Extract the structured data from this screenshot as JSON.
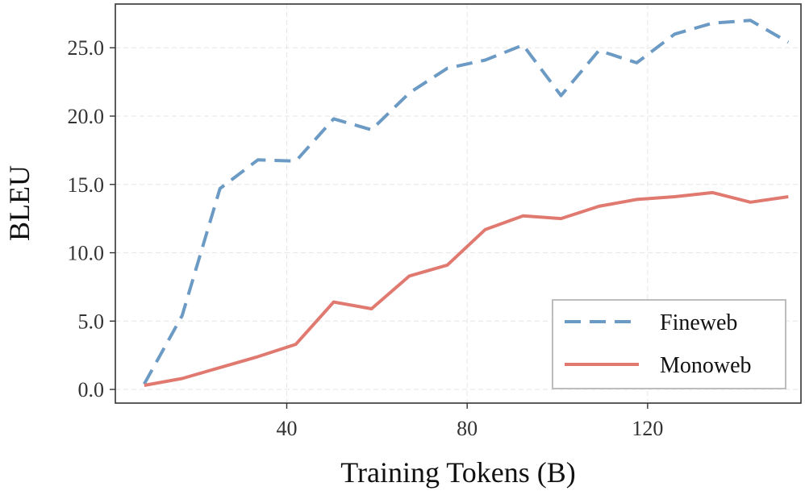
{
  "chart_data": {
    "type": "line",
    "title": "",
    "xlabel": "Training Tokens (B)",
    "ylabel": "BLEU",
    "xlim": [
      2,
      154
    ],
    "ylim": [
      -1,
      28.2
    ],
    "xticks": [
      40,
      80,
      120
    ],
    "xtick_labels": [
      "40",
      "80",
      "120"
    ],
    "yticks": [
      0,
      5,
      10,
      15,
      20,
      25
    ],
    "ytick_labels": [
      "0.0",
      "5.0",
      "10.0",
      "15.0",
      "20.0",
      "25.0"
    ],
    "grid": true,
    "legend_position": "bottom-right",
    "x": [
      8.4,
      16.8,
      25.2,
      33.6,
      42,
      50.4,
      58.8,
      67.2,
      75.6,
      84,
      92.4,
      100.8,
      109.2,
      117.6,
      126,
      134.4,
      142.8,
      151.2
    ],
    "series": [
      {
        "name": "Fineweb",
        "color": "#6b9ac4",
        "style": "dashed",
        "values": [
          0.4,
          5.4,
          14.7,
          16.8,
          16.7,
          19.8,
          19.0,
          21.7,
          23.5,
          24.1,
          25.2,
          21.5,
          24.8,
          23.9,
          26.0,
          26.8,
          27.0,
          25.4
        ]
      },
      {
        "name": "Monoweb",
        "color": "#e07a70",
        "style": "solid",
        "values": [
          0.3,
          0.8,
          1.6,
          2.4,
          3.3,
          6.4,
          5.9,
          8.3,
          9.1,
          11.7,
          12.7,
          12.5,
          13.4,
          13.9,
          14.1,
          14.4,
          13.7,
          14.1
        ]
      }
    ]
  }
}
